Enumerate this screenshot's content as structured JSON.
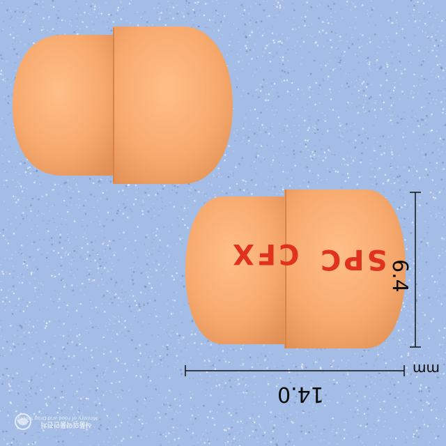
{
  "photo": {
    "background_color": "#a4bde6",
    "capsule_color": "#f6a86a",
    "imprint_color": "#e0321e",
    "capsules": [
      {
        "view": "side",
        "imprint": []
      },
      {
        "view": "side",
        "imprint": [
          "SPC",
          "CFX"
        ]
      }
    ]
  },
  "imprint": {
    "left_text": "SPC",
    "right_text": "CFX"
  },
  "measurements": {
    "width_value": "6.4",
    "length_value": "14.0",
    "unit": "mm"
  },
  "watermark": {
    "korean": "식품의약품안전처",
    "english": "Ministry of Food and Drug Safety",
    "logo_icon": "mfds-logo-icon"
  }
}
